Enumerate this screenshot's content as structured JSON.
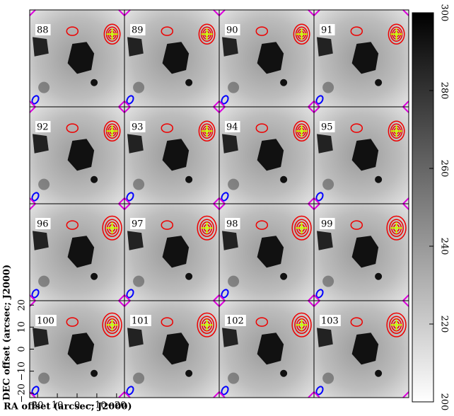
{
  "chart_data": {
    "type": "channel_map",
    "panels": [
      "88",
      "89",
      "90",
      "91",
      "92",
      "93",
      "94",
      "95",
      "96",
      "97",
      "98",
      "99",
      "100",
      "101",
      "102",
      "103"
    ],
    "x_label": "RA offset (arcsec; J2000)",
    "y_label": "DEC offset (arcsec; J2000)",
    "xlim": [
      24,
      -24
    ],
    "xticks": [
      20,
      10,
      0,
      {
        "value": -10,
        "label": "−10"
      },
      {
        "value": -20,
        "label": "−20"
      }
    ],
    "ylim": [
      -22,
      22
    ],
    "yticks": [
      {
        "value": -20,
        "label": "−20"
      },
      {
        "value": -10,
        "label": "−10"
      },
      0,
      10,
      20
    ],
    "colorbar": {
      "lim": [
        200,
        300
      ],
      "ticks": [
        200,
        220,
        240,
        260,
        280,
        300
      ]
    }
  }
}
